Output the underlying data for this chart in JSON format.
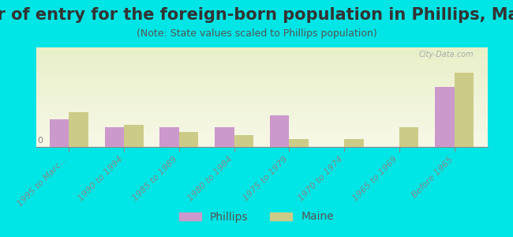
{
  "title": "Year of entry for the foreign-born population in Phillips, Maine",
  "subtitle": "(Note: State values scaled to Phillips population)",
  "categories": [
    "1995 to Marc...",
    "1990 to 1994",
    "1985 to 1989",
    "1980 to 1984",
    "1975 to 1979",
    "1970 to 1974",
    "1965 to 1969",
    "Before 1965"
  ],
  "phillips_values": [
    28,
    20,
    20,
    20,
    32,
    0,
    0,
    60
  ],
  "maine_values": [
    35,
    22,
    15,
    12,
    8,
    8,
    20,
    75
  ],
  "phillips_color": "#cc99cc",
  "maine_color": "#cccc88",
  "background_top": "#e8f0c8",
  "background_bottom": "#f8f8e8",
  "bg_outer": "#00e5e5",
  "title_fontsize": 15,
  "subtitle_fontsize": 9,
  "tick_label_fontsize": 8,
  "legend_fontsize": 10,
  "bar_width": 0.35,
  "ylim": [
    0,
    100
  ]
}
